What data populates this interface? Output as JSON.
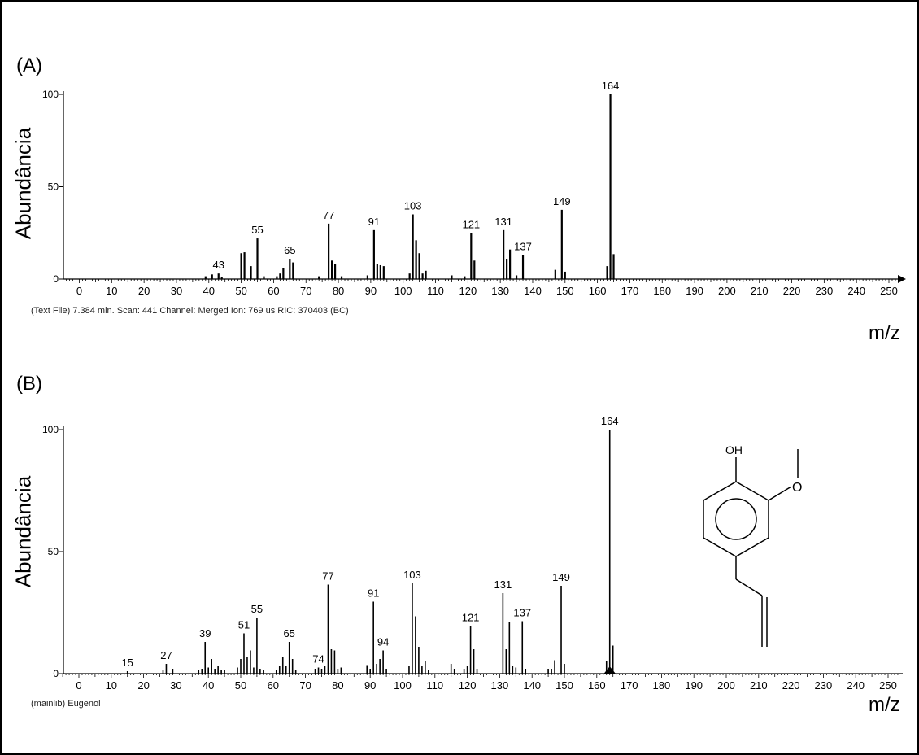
{
  "chart_data": [
    {
      "type": "bar",
      "panel": "(A)",
      "ylabel": "Abundância",
      "xlabel": "m/z",
      "caption": "(Text File) 7.384 min. Scan: 441 Channel: Merged Ion: 769 us RIC: 370403 (BC)",
      "xlim": [
        -5,
        253
      ],
      "ylim": [
        0,
        100
      ],
      "xticks": [
        0,
        10,
        20,
        30,
        40,
        50,
        60,
        70,
        80,
        90,
        100,
        110,
        120,
        130,
        140,
        150,
        160,
        170,
        180,
        190,
        200,
        210,
        220,
        230,
        240,
        250
      ],
      "yticks": [
        0,
        50,
        100
      ],
      "peaks": [
        {
          "x": 39,
          "y": 1.5
        },
        {
          "x": 41,
          "y": 2.5
        },
        {
          "x": 43,
          "y": 3,
          "label": "43"
        },
        {
          "x": 44,
          "y": 1
        },
        {
          "x": 50,
          "y": 14
        },
        {
          "x": 51,
          "y": 14.5
        },
        {
          "x": 53,
          "y": 7
        },
        {
          "x": 55,
          "y": 22,
          "label": "55"
        },
        {
          "x": 57,
          "y": 1.5
        },
        {
          "x": 61,
          "y": 1.5
        },
        {
          "x": 62,
          "y": 3
        },
        {
          "x": 63,
          "y": 6
        },
        {
          "x": 65,
          "y": 11,
          "label": "65"
        },
        {
          "x": 66,
          "y": 9
        },
        {
          "x": 74,
          "y": 1.5
        },
        {
          "x": 77,
          "y": 30,
          "label": "77"
        },
        {
          "x": 78,
          "y": 10
        },
        {
          "x": 79,
          "y": 8
        },
        {
          "x": 81,
          "y": 1.5
        },
        {
          "x": 89,
          "y": 2
        },
        {
          "x": 91,
          "y": 26.5,
          "label": "91"
        },
        {
          "x": 92,
          "y": 8
        },
        {
          "x": 93,
          "y": 7.5
        },
        {
          "x": 94,
          "y": 7
        },
        {
          "x": 102,
          "y": 3
        },
        {
          "x": 103,
          "y": 35,
          "label": "103"
        },
        {
          "x": 104,
          "y": 21
        },
        {
          "x": 105,
          "y": 14
        },
        {
          "x": 106,
          "y": 3
        },
        {
          "x": 107,
          "y": 4.5
        },
        {
          "x": 115,
          "y": 2
        },
        {
          "x": 119,
          "y": 1.5
        },
        {
          "x": 121,
          "y": 25,
          "label": "121"
        },
        {
          "x": 122,
          "y": 10
        },
        {
          "x": 131,
          "y": 26.5,
          "label": "131"
        },
        {
          "x": 132,
          "y": 11
        },
        {
          "x": 133,
          "y": 16
        },
        {
          "x": 135,
          "y": 2
        },
        {
          "x": 137,
          "y": 13,
          "label": "137"
        },
        {
          "x": 147,
          "y": 5
        },
        {
          "x": 149,
          "y": 37.5,
          "label": "149"
        },
        {
          "x": 150,
          "y": 4
        },
        {
          "x": 163,
          "y": 7
        },
        {
          "x": 164,
          "y": 100,
          "label": "164"
        },
        {
          "x": 165,
          "y": 13.5
        }
      ]
    },
    {
      "type": "bar",
      "panel": "(B)",
      "ylabel": "Abundância",
      "xlabel": "m/z",
      "caption": "(mainlib) Eugenol",
      "xlim": [
        -5,
        253
      ],
      "ylim": [
        0,
        100
      ],
      "xticks": [
        0,
        10,
        20,
        30,
        40,
        50,
        60,
        70,
        80,
        90,
        100,
        110,
        120,
        130,
        140,
        150,
        160,
        170,
        180,
        190,
        200,
        210,
        220,
        230,
        240,
        250
      ],
      "yticks": [
        0,
        50,
        100
      ],
      "molecule": {
        "oh": "OH",
        "o": "O"
      },
      "peaks": [
        {
          "x": 15,
          "y": 1,
          "label": "15"
        },
        {
          "x": 26,
          "y": 1.5
        },
        {
          "x": 27,
          "y": 4,
          "label": "27"
        },
        {
          "x": 29,
          "y": 2
        },
        {
          "x": 37,
          "y": 1.5
        },
        {
          "x": 38,
          "y": 2
        },
        {
          "x": 39,
          "y": 13,
          "label": "39"
        },
        {
          "x": 40,
          "y": 2.5
        },
        {
          "x": 41,
          "y": 6
        },
        {
          "x": 42,
          "y": 2
        },
        {
          "x": 43,
          "y": 3
        },
        {
          "x": 44,
          "y": 1.5
        },
        {
          "x": 45,
          "y": 1.5
        },
        {
          "x": 49,
          "y": 2.5
        },
        {
          "x": 50,
          "y": 6
        },
        {
          "x": 51,
          "y": 16.5,
          "label": "51"
        },
        {
          "x": 52,
          "y": 7
        },
        {
          "x": 53,
          "y": 9.5
        },
        {
          "x": 54,
          "y": 2.5
        },
        {
          "x": 55,
          "y": 23,
          "label": "55"
        },
        {
          "x": 56,
          "y": 2
        },
        {
          "x": 57,
          "y": 1.5
        },
        {
          "x": 61,
          "y": 1.5
        },
        {
          "x": 62,
          "y": 3
        },
        {
          "x": 63,
          "y": 7
        },
        {
          "x": 64,
          "y": 3
        },
        {
          "x": 65,
          "y": 13,
          "label": "65"
        },
        {
          "x": 66,
          "y": 6
        },
        {
          "x": 67,
          "y": 1.5
        },
        {
          "x": 73,
          "y": 2
        },
        {
          "x": 74,
          "y": 2.5,
          "label": "74"
        },
        {
          "x": 75,
          "y": 2
        },
        {
          "x": 76,
          "y": 3
        },
        {
          "x": 77,
          "y": 36.5,
          "label": "77"
        },
        {
          "x": 78,
          "y": 10
        },
        {
          "x": 79,
          "y": 9.5
        },
        {
          "x": 80,
          "y": 2
        },
        {
          "x": 81,
          "y": 2.5
        },
        {
          "x": 89,
          "y": 3.5
        },
        {
          "x": 90,
          "y": 2
        },
        {
          "x": 91,
          "y": 29.5,
          "label": "91"
        },
        {
          "x": 92,
          "y": 4
        },
        {
          "x": 93,
          "y": 6
        },
        {
          "x": 94,
          "y": 9.5,
          "label": "94"
        },
        {
          "x": 95,
          "y": 2
        },
        {
          "x": 102,
          "y": 3
        },
        {
          "x": 103,
          "y": 37,
          "label": "103"
        },
        {
          "x": 104,
          "y": 23.5
        },
        {
          "x": 105,
          "y": 11
        },
        {
          "x": 106,
          "y": 3
        },
        {
          "x": 107,
          "y": 5
        },
        {
          "x": 108,
          "y": 1.5
        },
        {
          "x": 115,
          "y": 4
        },
        {
          "x": 116,
          "y": 2
        },
        {
          "x": 119,
          "y": 2
        },
        {
          "x": 120,
          "y": 3
        },
        {
          "x": 121,
          "y": 19.5,
          "label": "121"
        },
        {
          "x": 122,
          "y": 10
        },
        {
          "x": 123,
          "y": 2
        },
        {
          "x": 131,
          "y": 33,
          "label": "131"
        },
        {
          "x": 132,
          "y": 10
        },
        {
          "x": 133,
          "y": 21
        },
        {
          "x": 134,
          "y": 3
        },
        {
          "x": 135,
          "y": 2.5
        },
        {
          "x": 137,
          "y": 21.5,
          "label": "137"
        },
        {
          "x": 138,
          "y": 2
        },
        {
          "x": 145,
          "y": 2
        },
        {
          "x": 146,
          "y": 2
        },
        {
          "x": 147,
          "y": 5.5
        },
        {
          "x": 149,
          "y": 36,
          "label": "149"
        },
        {
          "x": 150,
          "y": 4
        },
        {
          "x": 163,
          "y": 5
        },
        {
          "x": 164,
          "y": 100,
          "label": "164"
        },
        {
          "x": 165,
          "y": 11.5
        }
      ]
    }
  ]
}
